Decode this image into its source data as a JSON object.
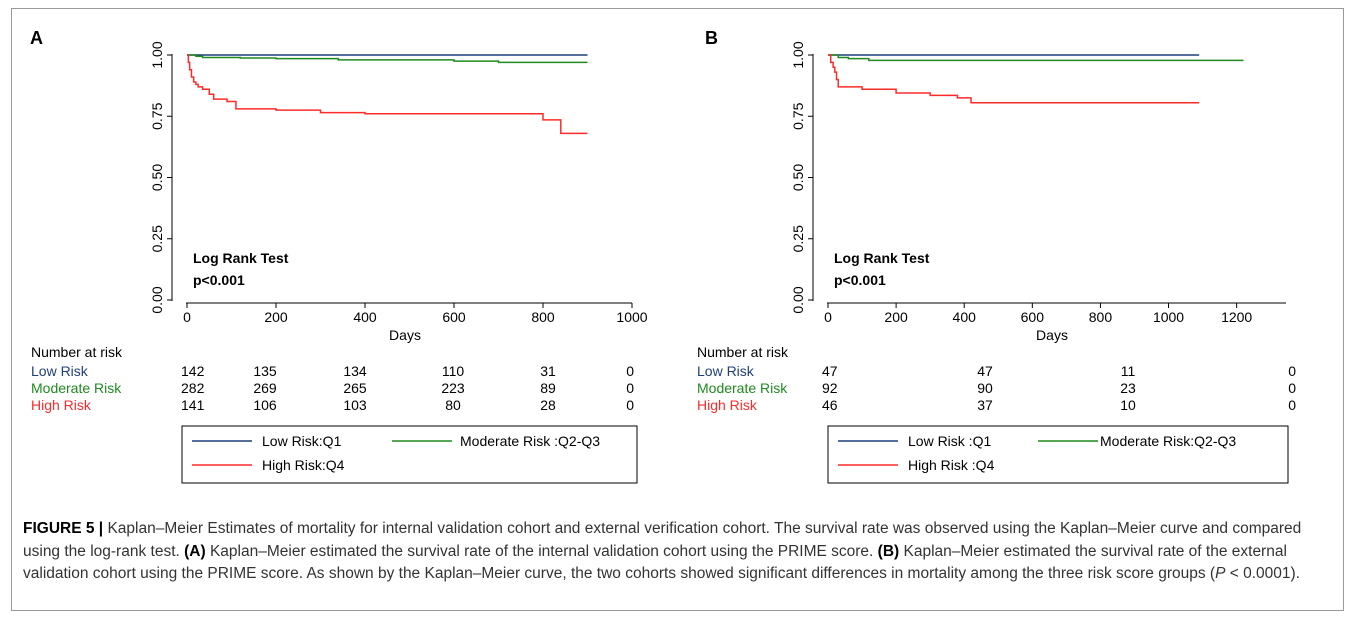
{
  "panels": [
    {
      "label": "A",
      "xlabel": "Days",
      "xticks": [
        0,
        200,
        400,
        600,
        800,
        1000
      ],
      "yticks": [
        "0.00",
        "0.25",
        "0.50",
        "0.75",
        "1.00"
      ],
      "test_title": "Log Rank Test",
      "test_p": "p<0.001",
      "risk_title": "Number at risk",
      "risk_rows": [
        {
          "label": "Low Risk",
          "color": "#1f3f7a",
          "values": [
            "142",
            "135",
            "134",
            "110",
            "31",
            "0"
          ]
        },
        {
          "label": "Moderate Risk",
          "color": "#1f8a1f",
          "values": [
            "282",
            "269",
            "265",
            "223",
            "89",
            "0"
          ]
        },
        {
          "label": "High Risk",
          "color": "#ff2a2a",
          "values": [
            "141",
            "106",
            "103",
            "80",
            "28",
            "0"
          ]
        }
      ],
      "legend": [
        "Low Risk:Q1",
        "Moderate Risk :Q2-Q3",
        "High Risk:Q4"
      ]
    },
    {
      "label": "B",
      "xlabel": "Days",
      "xticks": [
        0,
        200,
        400,
        600,
        800,
        1000,
        1200
      ],
      "yticks": [
        "0.00",
        "0.25",
        "0.50",
        "0.75",
        "1.00"
      ],
      "test_title": "Log Rank Test",
      "test_p": "p<0.001",
      "risk_title": "Number at risk",
      "risk_rows": [
        {
          "label": "Low Risk",
          "color": "#1f3f7a",
          "values": [
            "47",
            "47",
            "11",
            "0"
          ]
        },
        {
          "label": "Moderate Risk",
          "color": "#1f8a1f",
          "values": [
            "92",
            "90",
            "23",
            "0"
          ]
        },
        {
          "label": "High Risk",
          "color": "#ff2a2a",
          "values": [
            "46",
            "37",
            "10",
            "0"
          ]
        }
      ],
      "legend": [
        "Low Risk :Q1",
        "Moderate Risk:Q2-Q3",
        "High Risk :Q4"
      ]
    }
  ],
  "caption": {
    "fig_label": "FIGURE 5 |",
    "p1": " Kaplan–Meier Estimates of mortality for internal validation cohort and external verification cohort. The survival rate was observed using the Kaplan–Meier curve and compared using the log-rank test. ",
    "a_tag": "(A)",
    "p2": " Kaplan–Meier estimated the survival rate of the internal validation cohort using the PRIME score. ",
    "b_tag": "(B)",
    "p3": " Kaplan–Meier estimated the survival rate of the external validation cohort using the PRIME score. As shown by the Kaplan–Meier curve, the two cohorts showed significant differences in mortality among the three risk score groups (",
    "p_italic": "P",
    "p4": " < 0.0001)."
  },
  "chart_data": [
    {
      "type": "line",
      "panel": "A",
      "xlabel": "Days",
      "ylabel": "",
      "xlim": [
        0,
        1000
      ],
      "ylim": [
        0,
        1
      ],
      "grid": false,
      "legend_position": "bottom",
      "series": [
        {
          "name": "Low Risk:Q1",
          "color": "#1f3f7a",
          "x": [
            0,
            900
          ],
          "y": [
            1.0,
            1.0
          ]
        },
        {
          "name": "Moderate Risk :Q2-Q3",
          "color": "#1f8a1f",
          "x": [
            0,
            20,
            35,
            120,
            200,
            340,
            600,
            700,
            900
          ],
          "y": [
            1.0,
            0.995,
            0.99,
            0.988,
            0.985,
            0.98,
            0.975,
            0.97,
            0.97
          ]
        },
        {
          "name": "High Risk:Q4",
          "color": "#ff2a2a",
          "x": [
            0,
            3,
            6,
            10,
            15,
            20,
            25,
            35,
            50,
            60,
            90,
            110,
            200,
            300,
            400,
            790,
            800,
            840,
            900
          ],
          "y": [
            1.0,
            0.97,
            0.94,
            0.91,
            0.89,
            0.88,
            0.87,
            0.86,
            0.84,
            0.82,
            0.81,
            0.78,
            0.775,
            0.765,
            0.76,
            0.76,
            0.735,
            0.68,
            0.68
          ]
        }
      ]
    },
    {
      "type": "line",
      "panel": "B",
      "xlabel": "Days",
      "ylabel": "",
      "xlim": [
        0,
        1200
      ],
      "ylim": [
        0,
        1
      ],
      "grid": false,
      "legend_position": "bottom",
      "series": [
        {
          "name": "Low Risk :Q1",
          "color": "#1f3f7a",
          "x": [
            0,
            1090
          ],
          "y": [
            1.0,
            1.0
          ]
        },
        {
          "name": "Moderate Risk:Q2-Q3",
          "color": "#1f8a1f",
          "x": [
            0,
            30,
            60,
            120,
            1220
          ],
          "y": [
            1.0,
            0.99,
            0.985,
            0.978,
            0.978
          ]
        },
        {
          "name": "High Risk :Q4",
          "color": "#ff2a2a",
          "x": [
            0,
            8,
            15,
            20,
            25,
            30,
            40,
            100,
            200,
            300,
            380,
            420,
            1090
          ],
          "y": [
            1.0,
            0.97,
            0.95,
            0.93,
            0.9,
            0.87,
            0.87,
            0.86,
            0.845,
            0.835,
            0.825,
            0.805,
            0.805
          ]
        }
      ]
    }
  ]
}
